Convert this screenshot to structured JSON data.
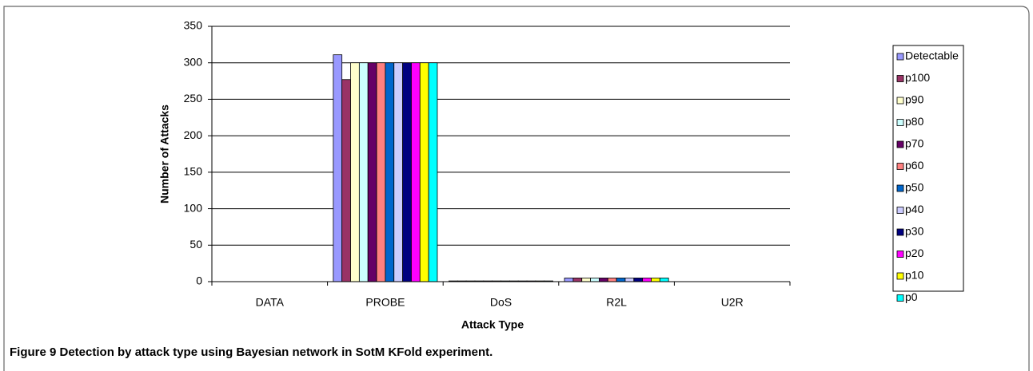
{
  "chart_data": {
    "type": "bar",
    "caption": "Figure 9 Detection by attack type using Bayesian network in SotM KFold experiment.",
    "x_label": "Attack Type",
    "y_label": "Number of Attacks",
    "categories": [
      "DATA",
      "PROBE",
      "DoS",
      "R2L",
      "U2R"
    ],
    "series": [
      {
        "name": "Detectable",
        "color": "#9999ff",
        "values": [
          0,
          311,
          1,
          5,
          0
        ]
      },
      {
        "name": "p100",
        "color": "#993366",
        "values": [
          0,
          277,
          1,
          5,
          0
        ]
      },
      {
        "name": "p90",
        "color": "#ffffcc",
        "values": [
          0,
          300,
          1,
          5,
          0
        ]
      },
      {
        "name": "p80",
        "color": "#ccffff",
        "values": [
          0,
          300,
          1,
          5,
          0
        ]
      },
      {
        "name": "p70",
        "color": "#660066",
        "values": [
          0,
          300,
          1,
          5,
          0
        ]
      },
      {
        "name": "p60",
        "color": "#ff8080",
        "values": [
          0,
          300,
          1,
          5,
          0
        ]
      },
      {
        "name": "p50",
        "color": "#0066cc",
        "values": [
          0,
          300,
          1,
          5,
          0
        ]
      },
      {
        "name": "p40",
        "color": "#ccccff",
        "values": [
          0,
          300,
          1,
          5,
          0
        ]
      },
      {
        "name": "p30",
        "color": "#000080",
        "values": [
          0,
          300,
          1,
          5,
          0
        ]
      },
      {
        "name": "p20",
        "color": "#ff00ff",
        "values": [
          0,
          300,
          1,
          5,
          0
        ]
      },
      {
        "name": "p10",
        "color": "#ffff00",
        "values": [
          0,
          300,
          1,
          5,
          0
        ]
      },
      {
        "name": "p0",
        "color": "#00ffff",
        "values": [
          0,
          300,
          1,
          5,
          0
        ]
      }
    ],
    "ylim": [
      0,
      350
    ],
    "yticks": [
      0,
      50,
      100,
      150,
      200,
      250,
      300,
      350
    ],
    "grid": true,
    "legend": "right"
  }
}
